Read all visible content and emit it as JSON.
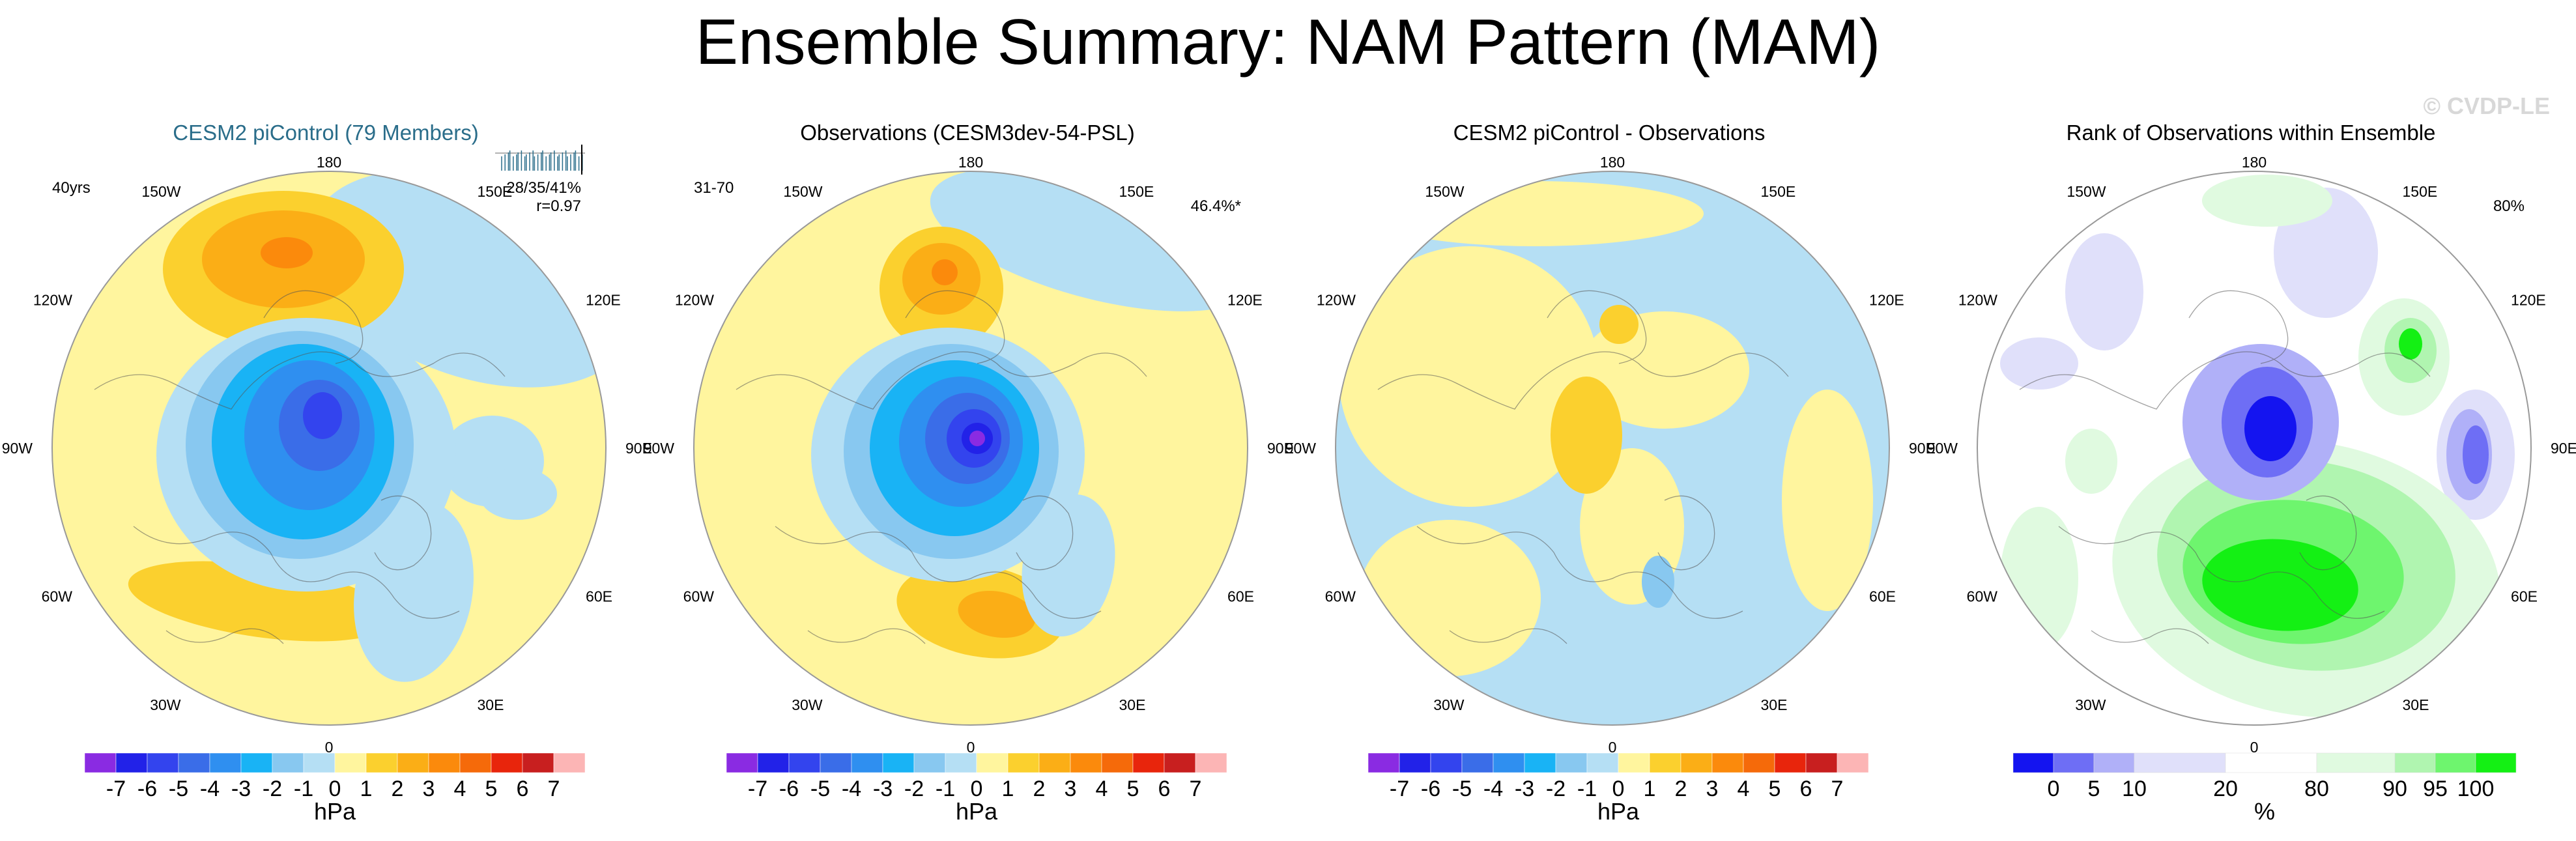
{
  "title": "Ensemble Summary: NAM Pattern (MAM)",
  "watermark": "© CVDP-LE",
  "colors": {
    "title_blue": "#2a6d8a",
    "pressure_scale": [
      "#8a2be2",
      "#2222e8",
      "#3344ee",
      "#3a6de8",
      "#2f8ff0",
      "#19b3f5",
      "#88c8f0",
      "#b5dff4",
      "#fff59e",
      "#fbd02e",
      "#fbae16",
      "#fb8a0c",
      "#f56a0a",
      "#e8250c",
      "#c81f1f",
      "#fcb5b5"
    ],
    "rank_scale": [
      "#1414f0",
      "#6e6ef5",
      "#b0b0f8",
      "#e0e0fa",
      "#ffffff",
      "#e0fae0",
      "#b0f5b0",
      "#6ef56e",
      "#14f014"
    ]
  },
  "lon_labels": [
    "180",
    "150E",
    "120E",
    "90E",
    "60E",
    "30E",
    "0",
    "30W",
    "60W",
    "90W",
    "120W",
    "150W"
  ],
  "panels": [
    {
      "title": "CESM2 piControl (79 Members)",
      "title_color": "#2a6d8a",
      "left_text": "40yrs",
      "right_text": "",
      "stat_line1": "28/35/41%",
      "stat_line2": "r=0.97",
      "colorbar": "pressure",
      "field": "ens"
    },
    {
      "title": "Observations (CESM3dev-54-PSL)",
      "title_color": "#000000",
      "left_text": "31-70",
      "right_text": "46.4%*",
      "stat_line1": "",
      "stat_line2": "",
      "colorbar": "pressure",
      "field": "obs"
    },
    {
      "title": "CESM2 piControl - Observations",
      "title_color": "#000000",
      "left_text": "",
      "right_text": "",
      "stat_line1": "",
      "stat_line2": "",
      "colorbar": "pressure",
      "field": "diff"
    },
    {
      "title": "Rank of Observations within Ensemble",
      "title_color": "#000000",
      "left_text": "",
      "right_text": "80%",
      "stat_line1": "",
      "stat_line2": "",
      "colorbar": "rank",
      "field": "rank"
    }
  ],
  "pressure_colorbar": {
    "ticks": [
      "-7",
      "-6",
      "-5",
      "-4",
      "-3",
      "-2",
      "-1",
      "0",
      "1",
      "2",
      "3",
      "4",
      "5",
      "6",
      "7"
    ],
    "unit": "hPa"
  },
  "rank_colorbar": {
    "ticks": [
      "0",
      "5",
      "10",
      "20",
      "80",
      "90",
      "95",
      "100"
    ],
    "unit": "%"
  },
  "chart_data": [
    {
      "type": "heatmap",
      "title": "CESM2 piControl (79 Members)",
      "projection": "polar stereographic (north)",
      "units": "hPa",
      "levels": [
        -7,
        -6,
        -5,
        -4,
        -3,
        -2,
        -1,
        0,
        1,
        2,
        3,
        4,
        5,
        6,
        7
      ],
      "features": [
        {
          "region": "Arctic / polar cap",
          "value_min": -5,
          "value_max": -2
        },
        {
          "region": "North Pacific (near 180)",
          "value_min": 1,
          "value_max": 3
        },
        {
          "region": "North Atlantic / Europe",
          "value_min": 0,
          "value_max": 2
        }
      ],
      "annotations": [
        "40yrs",
        "28/35/41%",
        "r=0.97"
      ]
    },
    {
      "type": "heatmap",
      "title": "Observations (CESM3dev-54-PSL)",
      "units": "hPa",
      "features": [
        {
          "region": "Arctic / polar cap",
          "value_min": -6,
          "value_max": -2
        },
        {
          "region": "North Pacific",
          "value_min": 1,
          "value_max": 3
        },
        {
          "region": "Europe / Mediterranean",
          "value_min": 1,
          "value_max": 2
        }
      ],
      "annotations": [
        "31-70",
        "46.4%*"
      ]
    },
    {
      "type": "heatmap",
      "title": "CESM2 piControl - Observations",
      "units": "hPa",
      "value_range": [
        -1,
        1
      ]
    },
    {
      "type": "heatmap",
      "title": "Rank of Observations within Ensemble",
      "units": "%",
      "levels": [
        0,
        5,
        10,
        20,
        80,
        90,
        95,
        100
      ],
      "features": [
        {
          "region": "Arctic / Siberia",
          "rank_range": "0-10"
        },
        {
          "region": "Europe / North Africa",
          "rank_range": "90-100"
        },
        {
          "region": "East Asia / Pacific",
          "rank_range": "0-20"
        }
      ],
      "annotations": [
        "80%"
      ]
    }
  ]
}
